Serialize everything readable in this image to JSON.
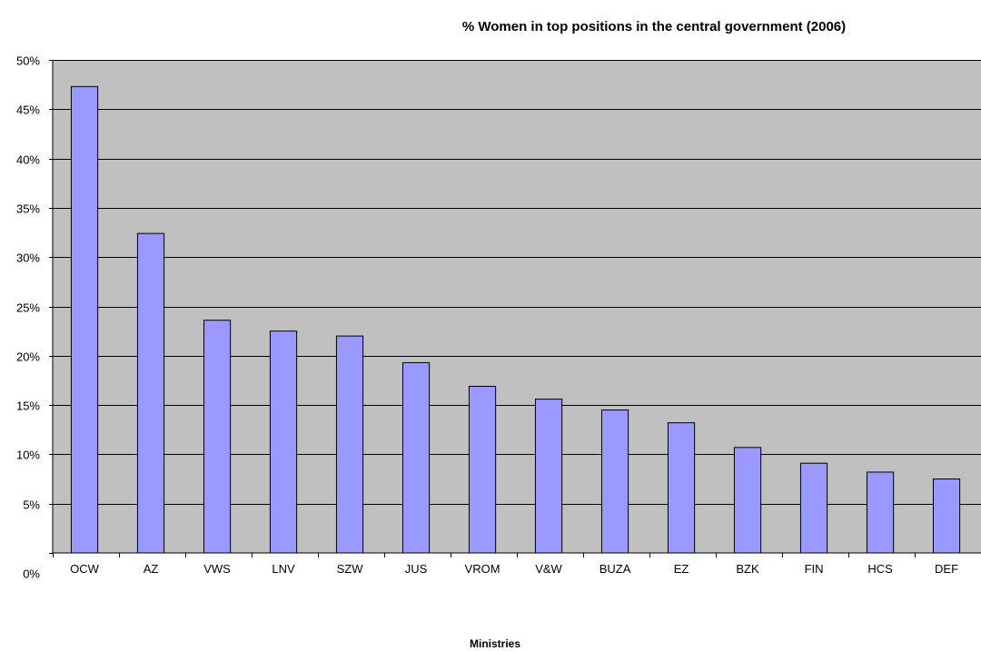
{
  "chart_data": {
    "type": "bar",
    "title": "% Women in top positions in the central government (2006)",
    "xlabel": "Ministries",
    "ylabel": "",
    "categories": [
      "OCW",
      "AZ",
      "VWS",
      "LNV",
      "SZW",
      "JUS",
      "VROM",
      "V&W",
      "BUZA",
      "EZ",
      "BZK",
      "FIN",
      "HCS",
      "DEF"
    ],
    "values": [
      47.3,
      32.4,
      23.6,
      22.5,
      22.0,
      19.3,
      16.9,
      15.6,
      14.5,
      13.2,
      10.7,
      9.1,
      8.2,
      7.5
    ],
    "ylim": [
      0,
      50
    ],
    "y_ticks": [
      0,
      5,
      10,
      15,
      20,
      25,
      30,
      35,
      40,
      45,
      50
    ],
    "y_tick_labels": [
      "0%",
      "5%",
      "10%",
      "15%",
      "20%",
      "25%",
      "30%",
      "35%",
      "40%",
      "45%",
      "50%"
    ],
    "grid": true,
    "colors": {
      "bar_fill": "#9999ff",
      "bar_stroke": "#000000",
      "plot_background": "#c0c0c0",
      "gridline": "#000000"
    }
  }
}
